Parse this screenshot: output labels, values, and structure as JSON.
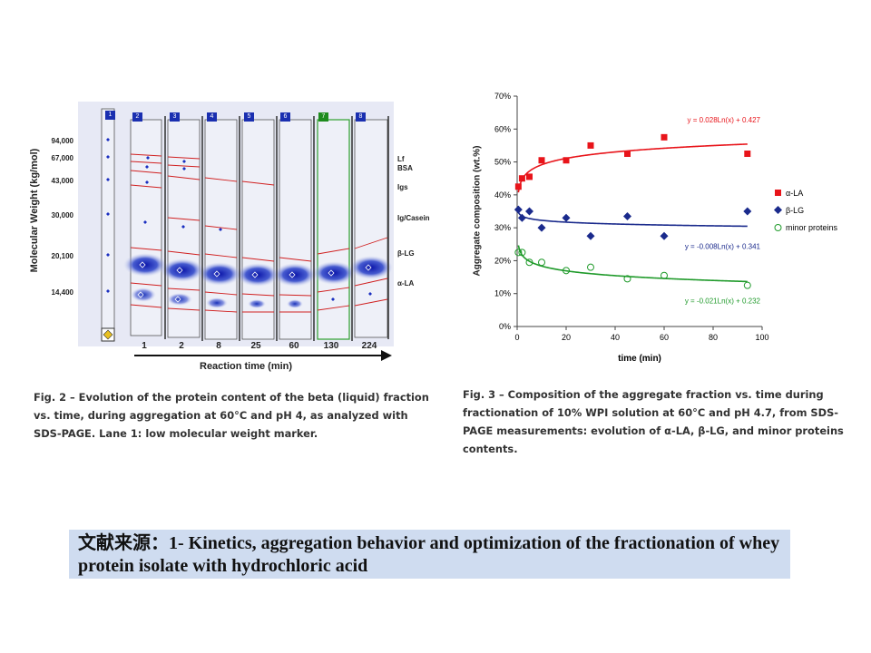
{
  "fig2": {
    "ylabel": "Molecular Weight (kg/mol)",
    "mw_markers": [
      "94,000",
      "67,000",
      "43,000",
      "30,000",
      "20,100",
      "14,400"
    ],
    "band_labels": [
      "Lf",
      "BSA",
      "Igs",
      "Ig/Casein",
      "β-LG",
      "α-LA"
    ],
    "lane_numbers": [
      "1",
      "2",
      "3",
      "4",
      "5",
      "6",
      "7",
      "8"
    ],
    "times": [
      "1",
      "2",
      "8",
      "25",
      "60",
      "130",
      "224"
    ],
    "xlabel": "Reaction time (min)",
    "caption": "Fig. 2 – Evolution of the protein content of the beta (liquid) fraction vs. time, during aggregation at 60°C and pH 4, as analyzed with SDS-PAGE. Lane 1: low molecular weight marker."
  },
  "chart_data": {
    "type": "scatter",
    "xlabel": "time (min)",
    "ylabel": "Aggregate composition (wt.%)",
    "xlim": [
      0,
      100
    ],
    "ylim": [
      0,
      70
    ],
    "xticks": [
      "0",
      "20",
      "40",
      "60",
      "80",
      "100"
    ],
    "yticks": [
      "0%",
      "10%",
      "20%",
      "30%",
      "40%",
      "50%",
      "60%",
      "70%"
    ],
    "legend_position": "right",
    "series": [
      {
        "name": "α-LA",
        "color": "#e8141a",
        "marker": "square",
        "x": [
          0.5,
          2,
          5,
          10,
          20,
          30,
          45,
          60,
          94
        ],
        "y": [
          42.5,
          45,
          45.5,
          50.5,
          50.5,
          55,
          52.5,
          57.5,
          52.5
        ],
        "fit": {
          "a": 0.028,
          "b": 0.427,
          "label": "y = 0.028Ln(x) + 0.427"
        }
      },
      {
        "name": "β-LG",
        "color": "#1a2a8c",
        "marker": "diamond",
        "x": [
          0.5,
          2,
          5,
          10,
          20,
          30,
          45,
          60,
          94
        ],
        "y": [
          35.5,
          33,
          35,
          30,
          33,
          27.5,
          33.5,
          27.5,
          35
        ],
        "fit": {
          "a": -0.008,
          "b": 0.341,
          "label": "y = -0.008Ln(x) + 0.341"
        }
      },
      {
        "name": "minor proteins",
        "color": "#1f9a2a",
        "marker": "circle-open",
        "x": [
          0.5,
          2,
          5,
          10,
          20,
          30,
          45,
          60,
          94
        ],
        "y": [
          22.5,
          22.5,
          19.5,
          19.5,
          17,
          18,
          14.5,
          15.5,
          12.5
        ],
        "fit": {
          "a": -0.021,
          "b": 0.232,
          "label": "y = -0.021Ln(x) + 0.232"
        }
      }
    ]
  },
  "fig3": {
    "caption": "Fig. 3 – Composition of the aggregate fraction vs. time during fractionation of 10% WPI solution at 60°C and pH 4.7, from SDS-PAGE measurements: evolution of α-LA, β-LG, and minor proteins contents."
  },
  "source": {
    "prefix": "文献来源：",
    "text": "1- Kinetics, aggregation behavior and optimization of the fractionation of whey protein isolate with hydrochloric acid"
  }
}
